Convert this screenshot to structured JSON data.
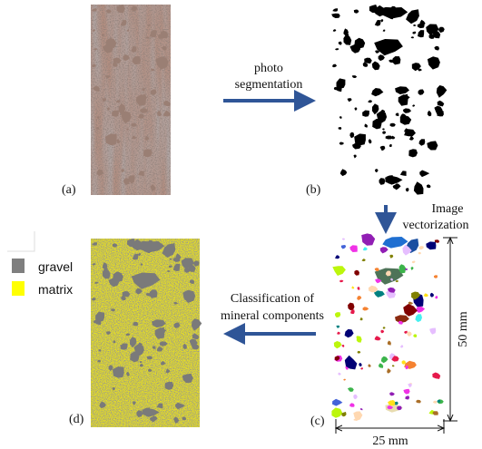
{
  "panels": {
    "a": "(a)",
    "b": "(b)",
    "c": "(c)",
    "d": "(d)"
  },
  "arrows": {
    "segmentation": [
      "photo",
      "segmentation"
    ],
    "vectorization": [
      "Image",
      "vectorization"
    ],
    "classification": [
      "Classification of",
      "mineral components"
    ]
  },
  "legend": [
    "gravel",
    "matrix"
  ],
  "dimensions": {
    "height": "50 mm",
    "width": "25 mm"
  }
}
